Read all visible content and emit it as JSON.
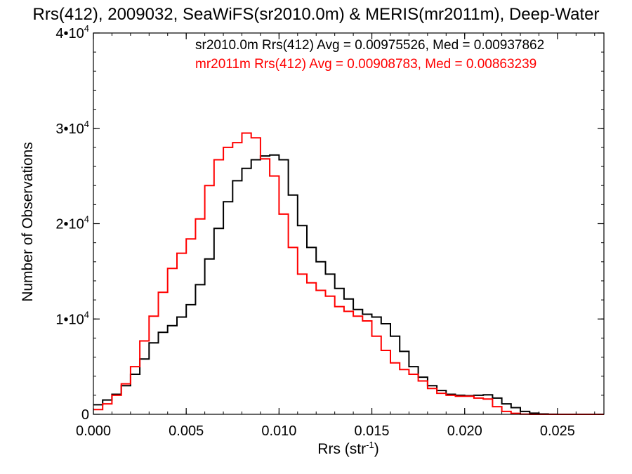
{
  "chart_data": {
    "type": "line",
    "title": "Rrs(412), 2009032, SeaWiFS(sr2010.0m) & MERIS(mr2011m), Deep-Water",
    "xlabel": "Rrs (str",
    "xlabel_sup": "-1",
    "xlabel_close": ")",
    "ylabel": "Number of Observations",
    "xlim": [
      0.0,
      0.0275
    ],
    "ylim": [
      0,
      40000
    ],
    "xticks": [
      {
        "value": 0.0,
        "label": "0.000"
      },
      {
        "value": 0.005,
        "label": "0.005"
      },
      {
        "value": 0.01,
        "label": "0.010"
      },
      {
        "value": 0.015,
        "label": "0.015"
      },
      {
        "value": 0.02,
        "label": "0.020"
      },
      {
        "value": 0.025,
        "label": "0.025"
      }
    ],
    "yticks": [
      {
        "value": 0,
        "base": "0",
        "exp": ""
      },
      {
        "value": 10000,
        "base": "1•10",
        "exp": "4"
      },
      {
        "value": 20000,
        "base": "2•10",
        "exp": "4"
      },
      {
        "value": 30000,
        "base": "3•10",
        "exp": "4"
      },
      {
        "value": 40000,
        "base": "4•10",
        "exp": "4"
      }
    ],
    "grid": false,
    "series": [
      {
        "name": "sr2010.0m",
        "color": "#000000",
        "annotation": "sr2010.0m Rrs(412) Avg = 0.00975526, Med = 0.00937862",
        "x": [
          0.0,
          0.0005,
          0.001,
          0.0015,
          0.002,
          0.0025,
          0.003,
          0.0035,
          0.004,
          0.0045,
          0.005,
          0.0055,
          0.006,
          0.0065,
          0.007,
          0.0075,
          0.008,
          0.0085,
          0.009,
          0.0095,
          0.01,
          0.0105,
          0.011,
          0.0115,
          0.012,
          0.0125,
          0.013,
          0.0135,
          0.014,
          0.0145,
          0.015,
          0.0155,
          0.016,
          0.0165,
          0.017,
          0.0175,
          0.018,
          0.0185,
          0.019,
          0.0195,
          0.02,
          0.0205,
          0.021,
          0.0215,
          0.022,
          0.0225,
          0.023,
          0.0235,
          0.024,
          0.0245,
          0.025,
          0.0255,
          0.026,
          0.0265,
          0.027,
          0.0275
        ],
        "y": [
          1000,
          1500,
          2100,
          3000,
          4200,
          5800,
          7500,
          8600,
          9300,
          10200,
          11500,
          13600,
          16300,
          19500,
          22300,
          24500,
          25800,
          26700,
          27100,
          27200,
          26700,
          23000,
          19800,
          17500,
          16000,
          14700,
          13200,
          12100,
          11000,
          10500,
          10200,
          9500,
          8200,
          6600,
          5000,
          3900,
          3000,
          2500,
          2100,
          2000,
          1950,
          2000,
          2050,
          1700,
          1100,
          700,
          300,
          120,
          40,
          10,
          0,
          0,
          0,
          0,
          0,
          0
        ]
      },
      {
        "name": "mr2011m",
        "color": "#ff0000",
        "annotation": "mr2011m Rrs(412) Avg = 0.00908783, Med = 0.00863239",
        "x": [
          0.0,
          0.0005,
          0.001,
          0.0015,
          0.002,
          0.0025,
          0.003,
          0.0035,
          0.004,
          0.0045,
          0.005,
          0.0055,
          0.006,
          0.0065,
          0.007,
          0.0075,
          0.008,
          0.0085,
          0.009,
          0.0095,
          0.01,
          0.0105,
          0.011,
          0.0115,
          0.012,
          0.0125,
          0.013,
          0.0135,
          0.014,
          0.0145,
          0.015,
          0.0155,
          0.016,
          0.0165,
          0.017,
          0.0175,
          0.018,
          0.0185,
          0.019,
          0.0195,
          0.02,
          0.0205,
          0.021,
          0.0215,
          0.022,
          0.0225,
          0.023,
          0.0235,
          0.024,
          0.0245,
          0.025,
          0.0255,
          0.026,
          0.0265,
          0.027,
          0.0275
        ],
        "y": [
          500,
          1100,
          2000,
          3200,
          5000,
          7700,
          10300,
          12800,
          15300,
          16900,
          18400,
          20500,
          24000,
          26700,
          28000,
          28500,
          29500,
          29000,
          26800,
          25000,
          21000,
          17500,
          14700,
          13800,
          13000,
          12400,
          11300,
          10800,
          10300,
          9800,
          8200,
          6700,
          5400,
          4700,
          4200,
          3500,
          2700,
          2200,
          2000,
          1900,
          1900,
          1700,
          1600,
          800,
          300,
          100,
          20,
          0,
          0,
          0,
          0,
          0,
          0,
          0,
          0,
          0
        ]
      }
    ]
  }
}
